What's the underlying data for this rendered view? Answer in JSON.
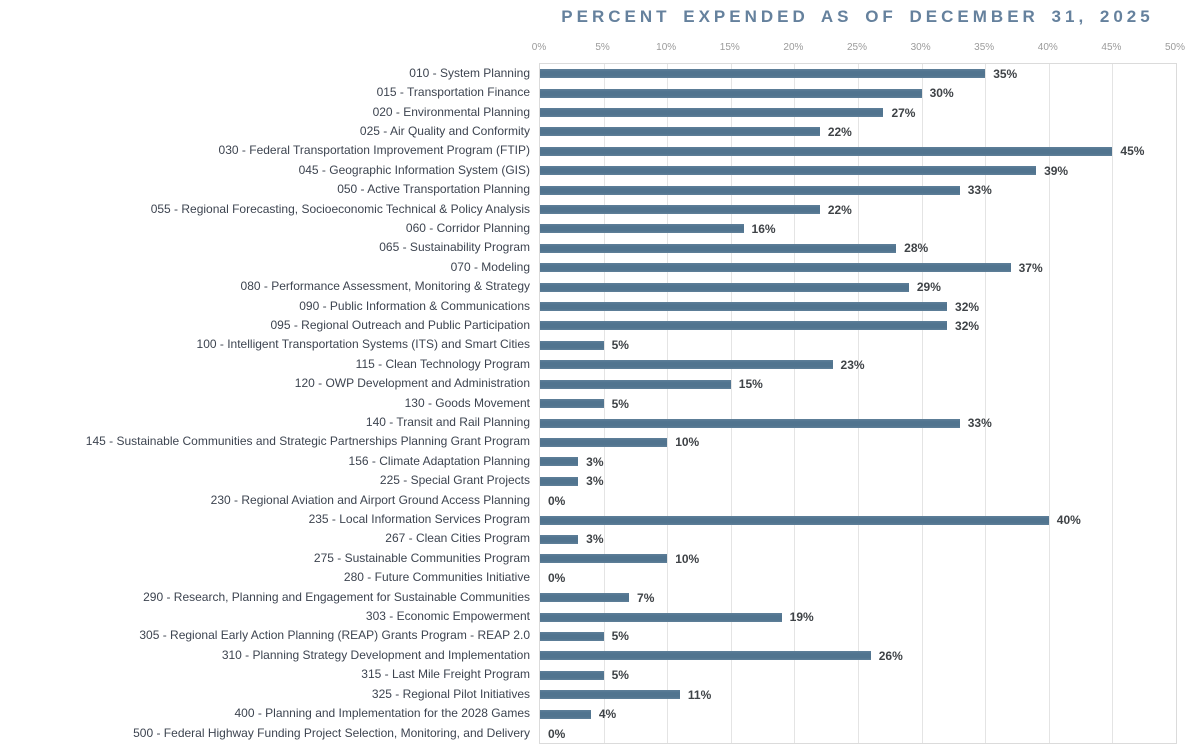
{
  "title": "PERCENT EXPENDED AS OF DECEMBER 31, 2025",
  "colors": {
    "bar": "#51748F",
    "title": "#65819D",
    "category_label": "#3D4450",
    "value_label": "#3F4347",
    "gridline": "#E4E4E4",
    "plot_border": "#DBDBDB",
    "tick_label": "#9B9B9B"
  },
  "chart_data": {
    "type": "bar",
    "orientation": "horizontal",
    "title": "PERCENT EXPENDED AS OF DECEMBER 31, 2025",
    "xlabel": "",
    "ylabel": "",
    "xlim": [
      0,
      50
    ],
    "x_ticks": [
      "0%",
      "5%",
      "10%",
      "15%",
      "20%",
      "25%",
      "30%",
      "35%",
      "40%",
      "45%",
      "50%"
    ],
    "grid": "vertical-only",
    "legend": "none",
    "value_label_position": "end-of-bar",
    "value_suffix": "%",
    "categories": [
      "010 - System Planning",
      "015 - Transportation Finance",
      "020 - Environmental Planning",
      "025 - Air Quality and Conformity",
      "030 - Federal Transportation Improvement Program (FTIP)",
      "045 - Geographic Information System (GIS)",
      "050 - Active Transportation Planning",
      "055 - Regional Forecasting, Socioeconomic Technical & Policy Analysis",
      "060 - Corridor Planning",
      "065 - Sustainability Program",
      "070 - Modeling",
      "080 - Performance Assessment, Monitoring & Strategy",
      "090 - Public Information & Communications",
      "095 - Regional Outreach and Public Participation",
      "100 - Intelligent Transportation Systems (ITS) and Smart Cities",
      "115 - Clean Technology Program",
      "120 - OWP Development and Administration",
      "130 - Goods Movement",
      "140 - Transit and Rail Planning",
      "145 - Sustainable Communities and Strategic Partnerships Planning Grant Program",
      "156 - Climate Adaptation Planning",
      "225 - Special Grant Projects",
      "230 - Regional Aviation and Airport Ground Access Planning",
      "235 - Local Information Services Program",
      "267 - Clean Cities Program",
      "275 - Sustainable Communities Program",
      "280 - Future Communities Initiative",
      "290 - Research, Planning and Engagement for Sustainable Communities",
      "303 - Economic Empowerment",
      "305 - Regional Early Action Planning (REAP) Grants Program - REAP 2.0",
      "310 - Planning Strategy Development and Implementation",
      "315 - Last Mile Freight Program",
      "325 - Regional Pilot Initiatives",
      "400 - Planning and Implementation for the 2028 Games",
      "500 - Federal Highway Funding Project Selection, Monitoring, and Delivery"
    ],
    "values": [
      35,
      30,
      27,
      22,
      45,
      39,
      33,
      22,
      16,
      28,
      37,
      29,
      32,
      32,
      5,
      23,
      15,
      5,
      33,
      10,
      3,
      3,
      0,
      40,
      3,
      10,
      0,
      7,
      19,
      5,
      26,
      5,
      11,
      4,
      0
    ]
  }
}
